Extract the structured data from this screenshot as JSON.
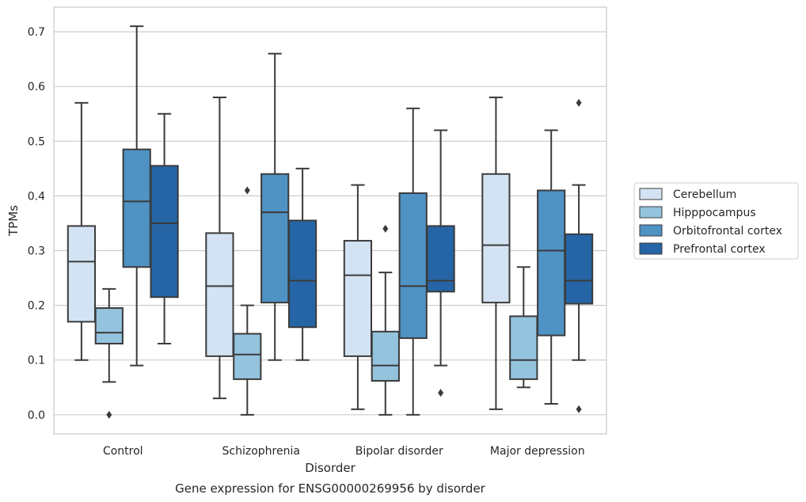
{
  "chart_data": {
    "type": "boxplot",
    "caption": "Gene expression for ENSG00000269956 by disorder",
    "xlabel": "Disorder",
    "ylabel": "TPMs",
    "ylim": [
      -0.035,
      0.745
    ],
    "yticks": [
      0.0,
      0.1,
      0.2,
      0.3,
      0.4,
      0.5,
      0.6,
      0.7
    ],
    "ytick_labels": [
      "0.0",
      "0.1",
      "0.2",
      "0.3",
      "0.4",
      "0.5",
      "0.6",
      "0.7"
    ],
    "grid": "horizontal",
    "legend_position": "center-right",
    "categories": [
      "Control",
      "Schizophrenia",
      "Bipolar disorder",
      "Major depression"
    ],
    "series": [
      {
        "name": "Cerebellum",
        "color": "#d3e3f3",
        "boxes": [
          {
            "whislo": 0.1,
            "q1": 0.17,
            "med": 0.28,
            "q3": 0.345,
            "whishi": 0.57,
            "fliers": []
          },
          {
            "whislo": 0.03,
            "q1": 0.107,
            "med": 0.235,
            "q3": 0.332,
            "whishi": 0.58,
            "fliers": []
          },
          {
            "whislo": 0.01,
            "q1": 0.107,
            "med": 0.255,
            "q3": 0.318,
            "whishi": 0.42,
            "fliers": []
          },
          {
            "whislo": 0.01,
            "q1": 0.205,
            "med": 0.31,
            "q3": 0.44,
            "whishi": 0.58,
            "fliers": []
          }
        ]
      },
      {
        "name": "Hipppocampus",
        "color": "#94c3de",
        "boxes": [
          {
            "whislo": 0.06,
            "q1": 0.13,
            "med": 0.15,
            "q3": 0.195,
            "whishi": 0.23,
            "fliers": [
              0.0
            ]
          },
          {
            "whislo": 0.0,
            "q1": 0.065,
            "med": 0.11,
            "q3": 0.148,
            "whishi": 0.2,
            "fliers": [
              0.41
            ]
          },
          {
            "whislo": 0.0,
            "q1": 0.062,
            "med": 0.09,
            "q3": 0.152,
            "whishi": 0.26,
            "fliers": [
              0.34
            ]
          },
          {
            "whislo": 0.05,
            "q1": 0.065,
            "med": 0.1,
            "q3": 0.18,
            "whishi": 0.27,
            "fliers": []
          }
        ]
      },
      {
        "name": "Orbitofrontal cortex",
        "color": "#4f92c4",
        "boxes": [
          {
            "whislo": 0.09,
            "q1": 0.27,
            "med": 0.39,
            "q3": 0.485,
            "whishi": 0.71,
            "fliers": []
          },
          {
            "whislo": 0.1,
            "q1": 0.205,
            "med": 0.37,
            "q3": 0.44,
            "whishi": 0.66,
            "fliers": []
          },
          {
            "whislo": 0.0,
            "q1": 0.14,
            "med": 0.235,
            "q3": 0.405,
            "whishi": 0.56,
            "fliers": []
          },
          {
            "whislo": 0.02,
            "q1": 0.145,
            "med": 0.3,
            "q3": 0.41,
            "whishi": 0.52,
            "fliers": []
          }
        ]
      },
      {
        "name": "Prefrontal cortex",
        "color": "#2565a6",
        "boxes": [
          {
            "whislo": 0.13,
            "q1": 0.215,
            "med": 0.35,
            "q3": 0.455,
            "whishi": 0.55,
            "fliers": []
          },
          {
            "whislo": 0.1,
            "q1": 0.16,
            "med": 0.245,
            "q3": 0.355,
            "whishi": 0.45,
            "fliers": []
          },
          {
            "whislo": 0.09,
            "q1": 0.225,
            "med": 0.245,
            "q3": 0.345,
            "whishi": 0.52,
            "fliers": [
              0.04
            ]
          },
          {
            "whislo": 0.1,
            "q1": 0.203,
            "med": 0.245,
            "q3": 0.33,
            "whishi": 0.42,
            "fliers": [
              0.57,
              0.01
            ]
          }
        ]
      }
    ]
  }
}
